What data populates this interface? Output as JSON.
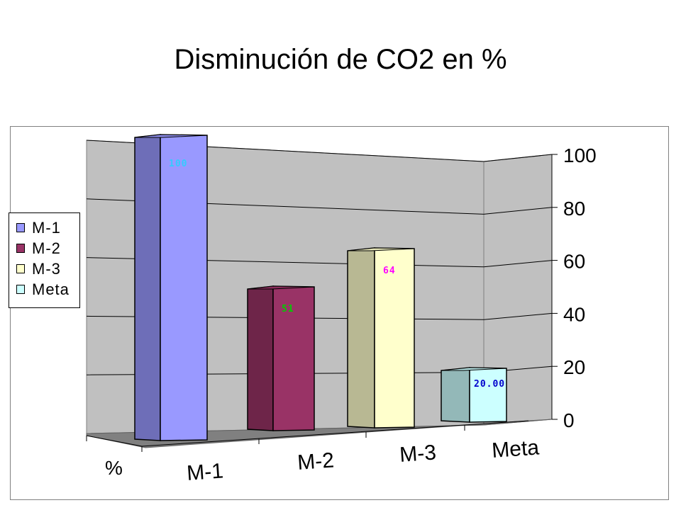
{
  "title": "Disminución de CO2 en %",
  "chart_data": {
    "type": "bar",
    "title": "Disminución de CO2 en %",
    "categories": [
      "M-1",
      "M-2",
      "M-3",
      "Meta"
    ],
    "x_axis_extra_label": "%",
    "values": [
      100,
      51,
      64,
      20
    ],
    "data_labels": [
      "100",
      "51",
      "64",
      "20.00"
    ],
    "ylim": [
      0,
      100
    ],
    "yticks": [
      "0",
      "20",
      "40",
      "60",
      "80",
      "100"
    ],
    "grid": true,
    "legend_position": "left",
    "legend": [
      "M-1",
      "M-2",
      "M-3",
      "Meta"
    ],
    "colors": [
      "#9999ff",
      "#993366",
      "#ffffcc",
      "#ccffff"
    ],
    "label_colors": [
      "#33ccff",
      "#00cc00",
      "#ff00ff",
      "#0000cc"
    ]
  }
}
